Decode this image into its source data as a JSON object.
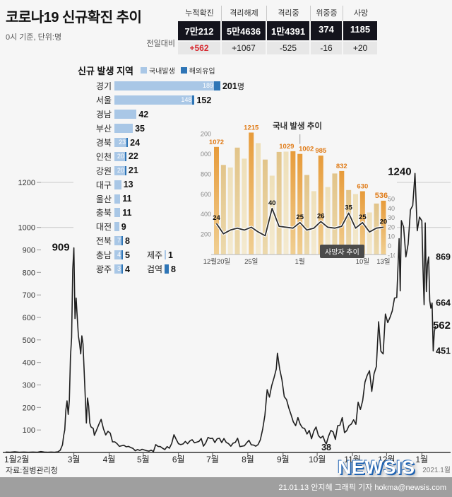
{
  "meta": {
    "bg": "#f6f6f6",
    "accent_red": "#d7282f",
    "bar_domestic": "#a9c7e6",
    "bar_imported": "#2e75b6",
    "line_color": "#1f1f1f",
    "inset_label_orange": "#e07b17",
    "logo_blue": "#2063b2"
  },
  "header": {
    "title": "코로나19 신규확진 추이",
    "subtitle": "0시 기준, 단위:명",
    "stats": {
      "delta_label": "전일대비",
      "columns": [
        {
          "label": "누적확진",
          "value": "7만212",
          "delta": "+562",
          "highlight": true
        },
        {
          "label": "격리해제",
          "value": "5만4636",
          "delta": "+1067",
          "highlight": false
        },
        {
          "label": "격리중",
          "value": "1만4391",
          "delta": "-525",
          "highlight": false
        },
        {
          "label": "위중증",
          "value": "374",
          "delta": "-16",
          "highlight": false
        },
        {
          "label": "사망",
          "value": "1185",
          "delta": "+20",
          "highlight": false
        }
      ]
    }
  },
  "chart_data": [
    {
      "id": "main_trend",
      "type": "line",
      "title": "코로나19 신규확진 추이",
      "ylabel": "명",
      "ylim": [
        0,
        1240
      ],
      "y_ticks": [
        100,
        200,
        300,
        400,
        500,
        600,
        700,
        800,
        900,
        1000,
        1200
      ],
      "x_ticks": [
        {
          "label": "1월2월",
          "day": 0
        },
        {
          "label": "3월",
          "day": 60
        },
        {
          "label": "4월",
          "day": 91
        },
        {
          "label": "5월",
          "day": 121
        },
        {
          "label": "6월",
          "day": 152
        },
        {
          "label": "7월",
          "day": 182
        },
        {
          "label": "8월",
          "day": 213
        },
        {
          "label": "9월",
          "day": 244
        },
        {
          "label": "10월",
          "day": 274
        },
        {
          "label": "11월",
          "day": 305
        },
        {
          "label": "12월",
          "day": 335
        },
        {
          "label": "1월",
          "day": 366
        }
      ],
      "year_label": "2021.1월",
      "points": [
        [
          0,
          2
        ],
        [
          4,
          1
        ],
        [
          8,
          3
        ],
        [
          12,
          1
        ],
        [
          16,
          2
        ],
        [
          20,
          1
        ],
        [
          24,
          2
        ],
        [
          28,
          1
        ],
        [
          31,
          4
        ],
        [
          34,
          2
        ],
        [
          37,
          1
        ],
        [
          40,
          2
        ],
        [
          43,
          1
        ],
        [
          46,
          3
        ],
        [
          48,
          10
        ],
        [
          50,
          34
        ],
        [
          51,
          74
        ],
        [
          52,
          100
        ],
        [
          53,
          190
        ],
        [
          54,
          229
        ],
        [
          55,
          169
        ],
        [
          56,
          231
        ],
        [
          57,
          427
        ],
        [
          58,
          511
        ],
        [
          59,
          813
        ],
        [
          60,
          909
        ],
        [
          61,
          595
        ],
        [
          62,
          686
        ],
        [
          63,
          600
        ],
        [
          64,
          518
        ],
        [
          65,
          483
        ],
        [
          66,
          438
        ],
        [
          67,
          518
        ],
        [
          68,
          483
        ],
        [
          69,
          367
        ],
        [
          70,
          248
        ],
        [
          71,
          131
        ],
        [
          72,
          242
        ],
        [
          73,
          207
        ],
        [
          74,
          131
        ],
        [
          75,
          114
        ],
        [
          76,
          110
        ],
        [
          77,
          107
        ],
        [
          78,
          76
        ],
        [
          80,
          100
        ],
        [
          82,
          125
        ],
        [
          84,
          147
        ],
        [
          86,
          105
        ],
        [
          88,
          78
        ],
        [
          90,
          94
        ],
        [
          92,
          86
        ],
        [
          94,
          47
        ],
        [
          96,
          47
        ],
        [
          98,
          39
        ],
        [
          100,
          27
        ],
        [
          102,
          30
        ],
        [
          104,
          32
        ],
        [
          106,
          25
        ],
        [
          108,
          27
        ],
        [
          110,
          22
        ],
        [
          112,
          18
        ],
        [
          114,
          8
        ],
        [
          116,
          13
        ],
        [
          118,
          9
        ],
        [
          120,
          14
        ],
        [
          122,
          11
        ],
        [
          124,
          8
        ],
        [
          126,
          6
        ],
        [
          128,
          10
        ],
        [
          130,
          4
        ],
        [
          132,
          35
        ],
        [
          134,
          27
        ],
        [
          136,
          26
        ],
        [
          138,
          19
        ],
        [
          140,
          13
        ],
        [
          142,
          26
        ],
        [
          144,
          19
        ],
        [
          146,
          40
        ],
        [
          148,
          79
        ],
        [
          150,
          58
        ],
        [
          152,
          39
        ],
        [
          154,
          35
        ],
        [
          156,
          38
        ],
        [
          158,
          49
        ],
        [
          160,
          39
        ],
        [
          162,
          51
        ],
        [
          164,
          57
        ],
        [
          166,
          43
        ],
        [
          168,
          46
        ],
        [
          170,
          49
        ],
        [
          172,
          62
        ],
        [
          174,
          28
        ],
        [
          176,
          43
        ],
        [
          178,
          67
        ],
        [
          180,
          62
        ],
        [
          182,
          63
        ],
        [
          184,
          44
        ],
        [
          186,
          61
        ],
        [
          188,
          63
        ],
        [
          190,
          44
        ],
        [
          192,
          62
        ],
        [
          194,
          45
        ],
        [
          196,
          39
        ],
        [
          198,
          28
        ],
        [
          200,
          41
        ],
        [
          202,
          45
        ],
        [
          204,
          63
        ],
        [
          206,
          26
        ],
        [
          208,
          28
        ],
        [
          210,
          30
        ],
        [
          212,
          43
        ],
        [
          214,
          54
        ],
        [
          216,
          34
        ],
        [
          218,
          33
        ],
        [
          220,
          28
        ],
        [
          222,
          35
        ],
        [
          224,
          56
        ],
        [
          226,
          103
        ],
        [
          228,
          166
        ],
        [
          230,
          279
        ],
        [
          232,
          246
        ],
        [
          234,
          297
        ],
        [
          236,
          332
        ],
        [
          238,
          371
        ],
        [
          239,
          441
        ],
        [
          241,
          371
        ],
        [
          243,
          323
        ],
        [
          245,
          248
        ],
        [
          247,
          235
        ],
        [
          249,
          198
        ],
        [
          251,
          168
        ],
        [
          253,
          136
        ],
        [
          255,
          119
        ],
        [
          257,
          155
        ],
        [
          259,
          126
        ],
        [
          261,
          110
        ],
        [
          263,
          106
        ],
        [
          265,
          82
        ],
        [
          267,
          98
        ],
        [
          269,
          61
        ],
        [
          271,
          95
        ],
        [
          273,
          113
        ],
        [
          275,
          75
        ],
        [
          277,
          64
        ],
        [
          279,
          73
        ],
        [
          281,
          46
        ],
        [
          282,
          38
        ],
        [
          284,
          72
        ],
        [
          286,
          98
        ],
        [
          288,
          91
        ],
        [
          290,
          58
        ],
        [
          292,
          119
        ],
        [
          294,
          121
        ],
        [
          296,
          155
        ],
        [
          298,
          88
        ],
        [
          300,
          97
        ],
        [
          302,
          119
        ],
        [
          304,
          126
        ],
        [
          306,
          145
        ],
        [
          308,
          125
        ],
        [
          310,
          223
        ],
        [
          312,
          191
        ],
        [
          314,
          230
        ],
        [
          316,
          313
        ],
        [
          318,
          343
        ],
        [
          320,
          363
        ],
        [
          322,
          271
        ],
        [
          324,
          349
        ],
        [
          326,
          382
        ],
        [
          328,
          581
        ],
        [
          330,
          450
        ],
        [
          332,
          438
        ],
        [
          334,
          615
        ],
        [
          336,
          577
        ],
        [
          338,
          600
        ],
        [
          340,
          629
        ],
        [
          342,
          686
        ],
        [
          344,
          689
        ],
        [
          346,
          950
        ],
        [
          347,
          718
        ],
        [
          348,
          1030
        ],
        [
          350,
          1002
        ],
        [
          352,
          869
        ],
        [
          354,
          926
        ],
        [
          356,
          1078
        ],
        [
          358,
          1097
        ],
        [
          360,
          1240
        ],
        [
          362,
          985
        ],
        [
          364,
          1046
        ],
        [
          366,
          1029
        ],
        [
          367,
          820
        ],
        [
          368,
          657
        ],
        [
          369,
          1020
        ],
        [
          370,
          715
        ],
        [
          371,
          838
        ],
        [
          372,
          869
        ],
        [
          373,
          674
        ],
        [
          374,
          641
        ],
        [
          375,
          664
        ],
        [
          376,
          451
        ],
        [
          377,
          537
        ],
        [
          378,
          562
        ]
      ],
      "annotations": [
        {
          "text": "909",
          "day": 60,
          "value": 909,
          "anchor": "left",
          "big": true
        },
        {
          "text": "38",
          "day": 282,
          "value": 38,
          "anchor": "below",
          "big": false
        },
        {
          "text": "1240",
          "day": 360,
          "value": 1240,
          "anchor": "left-top",
          "big": true
        },
        {
          "text": "869",
          "value": 869,
          "anchor": "right",
          "big": false
        },
        {
          "text": "664",
          "value": 664,
          "anchor": "right",
          "big": false
        },
        {
          "text": "562",
          "value": 562,
          "anchor": "right",
          "big": true
        },
        {
          "text": "451",
          "value": 451,
          "anchor": "right",
          "big": false
        }
      ]
    },
    {
      "id": "region_new_cases",
      "type": "bar",
      "title": "신규 발생 지역",
      "legend": [
        {
          "label": "국내발생",
          "key": "domestic"
        },
        {
          "label": "해외유입",
          "key": "imported"
        }
      ],
      "max": 201,
      "rows": [
        {
          "name": "경기",
          "domestic": 189,
          "imported": 12,
          "total": "201",
          "suffix": "명"
        },
        {
          "name": "서울",
          "domestic": 148,
          "imported": 4,
          "total": "152"
        },
        {
          "name": "경남",
          "domestic": 42,
          "total": "42"
        },
        {
          "name": "부산",
          "domestic": 35,
          "total": "35"
        },
        {
          "name": "경북",
          "domestic": 23,
          "imported": 1,
          "total": "24"
        },
        {
          "name": "인천",
          "domestic": 20,
          "imported": 2,
          "total": "22"
        },
        {
          "name": "강원",
          "domestic": 20,
          "imported": 1,
          "total": "21"
        },
        {
          "name": "대구",
          "domestic": 13,
          "total": "13"
        },
        {
          "name": "울산",
          "domestic": 11,
          "total": "11"
        },
        {
          "name": "충북",
          "domestic": 11,
          "total": "11"
        },
        {
          "name": "대전",
          "domestic": 9,
          "total": "9"
        },
        {
          "name": "전북",
          "domestic": 7,
          "imported": 1,
          "total": "8"
        },
        {
          "name": "충남",
          "domestic": 4,
          "imported": 1,
          "total": "5",
          "extra": {
            "name": "제주",
            "value": 1,
            "type": "domestic"
          }
        },
        {
          "name": "광주",
          "domestic": 3,
          "imported": 1,
          "total": "4",
          "extra": {
            "name": "검역",
            "value": 8,
            "type": "imported"
          }
        }
      ]
    },
    {
      "id": "domestic_trend_inset",
      "type": "bar+line",
      "title": "국내 발생 추이",
      "deaths_label": "사망자 추이",
      "left_axis": [
        1200,
        1000,
        800,
        600,
        400,
        200
      ],
      "right_axis": [
        50,
        40,
        30,
        20,
        10,
        0,
        -10
      ],
      "x_ticks": [
        {
          "label": "12월20일",
          "index": 0
        },
        {
          "label": "25일",
          "index": 5
        },
        {
          "label": "1월",
          "index": 12
        },
        {
          "label": "10일",
          "index": 21
        },
        {
          "label": "13일",
          "index": 24
        }
      ],
      "bars": [
        1072,
        892,
        867,
        1065,
        955,
        1215,
        1110,
        946,
        785,
        1022,
        1025,
        1029,
        1002,
        792,
        631,
        985,
        672,
        807,
        832,
        642,
        602,
        630,
        419,
        508,
        536
      ],
      "bar_labels": [
        {
          "index": 0,
          "text": "1072"
        },
        {
          "index": 5,
          "text": "1215"
        },
        {
          "index": 11,
          "text": "1029",
          "dx": -9
        },
        {
          "index": 12,
          "text": "1002",
          "dx": 9
        },
        {
          "index": 15,
          "text": "985"
        },
        {
          "index": 18,
          "text": "832"
        },
        {
          "index": 21,
          "text": "630"
        },
        {
          "index": 24,
          "text": "536",
          "bold": true,
          "dx": -3
        }
      ],
      "line": [
        24,
        13,
        17,
        19,
        17,
        20,
        15,
        11,
        40,
        21,
        20,
        19,
        25,
        17,
        19,
        26,
        20,
        19,
        21,
        35,
        19,
        25,
        15,
        19,
        20
      ],
      "line_labels": [
        {
          "index": 0,
          "text": "24"
        },
        {
          "index": 8,
          "text": "40"
        },
        {
          "index": 12,
          "text": "25"
        },
        {
          "index": 15,
          "text": "26"
        },
        {
          "index": 19,
          "text": "35"
        },
        {
          "index": 21,
          "text": "25"
        },
        {
          "index": 24,
          "text": "20"
        }
      ]
    }
  ],
  "footer": {
    "source": "자료:질병관리청",
    "credit": "21.01.13 안지혜 그래픽 기자 hokma@newsis.com",
    "logo": "NEWSIS"
  }
}
